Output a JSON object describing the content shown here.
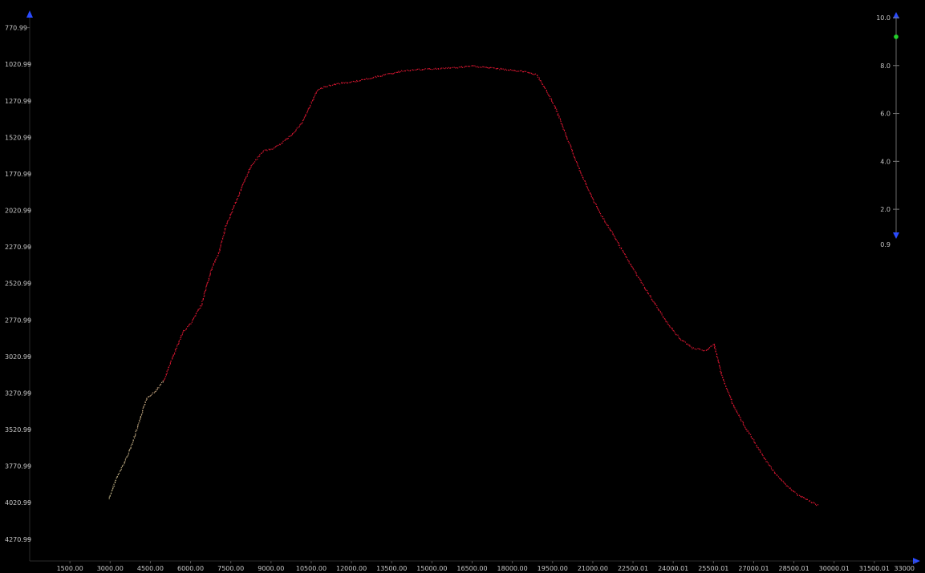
{
  "chart_data": {
    "type": "scatter",
    "title": "",
    "xlabel": "",
    "ylabel": "",
    "y_inverted": true,
    "xlim": [
      0,
      33000
    ],
    "ylim": [
      4420,
      680
    ],
    "x_ticks": [
      "1500.00",
      "3000.00",
      "4500.00",
      "6000.00",
      "7500.00",
      "9000.00",
      "10500.00",
      "12000.00",
      "13500.00",
      "15000.00",
      "16500.00",
      "18000.00",
      "19500.00",
      "21000.00",
      "22500.01",
      "24000.01",
      "25500.01",
      "27000.01",
      "28500.01",
      "30000.01",
      "31500.01",
      "33000"
    ],
    "y_ticks": [
      "770.99",
      "1020.99",
      "1270.99",
      "1520.99",
      "1770.99",
      "2020.99",
      "2270.99",
      "2520.99",
      "2770.99",
      "3020.99",
      "3270.99",
      "3520.99",
      "3770.99",
      "4020.99",
      "4270.99"
    ],
    "series": [
      {
        "x": [
          2950,
          3200,
          3500,
          3800,
          4100,
          4350,
          4650,
          5000,
          5300,
          5700,
          6000,
          6400,
          6750,
          7050,
          7300,
          7600,
          7900,
          8250,
          8700,
          9000,
          9300,
          9700,
          10100,
          10500,
          10700,
          11000,
          11500,
          12000,
          12500,
          13000,
          13500,
          14000,
          14500,
          15000,
          15500,
          16000,
          16500,
          17000,
          17500,
          18000,
          18500,
          18900,
          19200,
          19600,
          20000,
          20400,
          20800,
          21200,
          21700,
          22200,
          22700,
          23200,
          23700,
          24200,
          24700,
          25000,
          25200,
          25500,
          25800,
          26200,
          26600,
          27000,
          27400,
          27800,
          28200,
          28600,
          29000,
          29400
        ],
        "y": [
          3990,
          3860,
          3750,
          3620,
          3450,
          3300,
          3260,
          3180,
          3030,
          2850,
          2790,
          2660,
          2430,
          2300,
          2130,
          1990,
          1860,
          1710,
          1610,
          1600,
          1570,
          1510,
          1430,
          1280,
          1200,
          1170,
          1150,
          1140,
          1120,
          1100,
          1080,
          1060,
          1055,
          1050,
          1045,
          1040,
          1030,
          1040,
          1050,
          1060,
          1070,
          1090,
          1180,
          1320,
          1510,
          1700,
          1870,
          2020,
          2170,
          2330,
          2480,
          2630,
          2770,
          2890,
          2960,
          2970,
          2980,
          2930,
          3150,
          3340,
          3480,
          3600,
          3720,
          3820,
          3900,
          3960,
          4000,
          4040
        ]
      }
    ],
    "color_scale": {
      "labels": [
        "10.0",
        "8.0",
        "6.0",
        "4.0",
        "2.0",
        "0.9"
      ],
      "min": 0.9,
      "max": 10.0,
      "marker_value": 9.2
    },
    "colors": {
      "background": "#000000",
      "axis": "#2a2a2a",
      "point_low": "#d8d8a0",
      "point_high": "#ff1a3a",
      "arrow": "#2a4bff",
      "marker": "#22d22a"
    }
  }
}
